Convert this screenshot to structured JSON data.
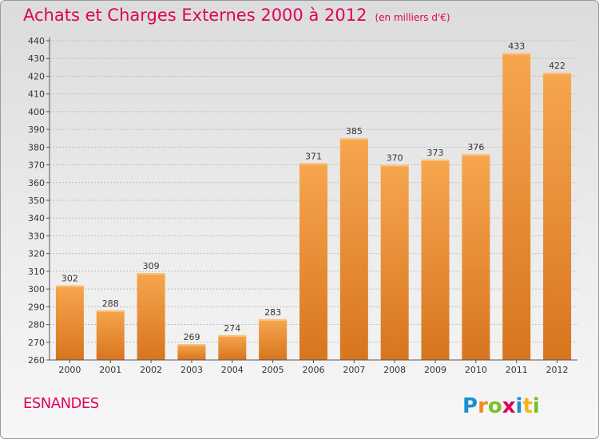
{
  "header": {
    "title": "Achats et Charges Externes 2000 à 2012",
    "unit": "(en milliers d'€)"
  },
  "footer": {
    "place": "ESNANDES",
    "logo_text": "Proxiti"
  },
  "colors": {
    "title": "#e0005a",
    "bar_top": "#f6a64e",
    "bar_bottom": "#d8751f",
    "grid": "#bdbdbd"
  },
  "chart_data": {
    "type": "bar",
    "categories": [
      "2000",
      "2001",
      "2002",
      "2003",
      "2004",
      "2005",
      "2006",
      "2007",
      "2008",
      "2009",
      "2010",
      "2011",
      "2012"
    ],
    "values": [
      302,
      288,
      309,
      269,
      274,
      283,
      371,
      385,
      370,
      373,
      376,
      433,
      422
    ],
    "ylim": [
      260,
      440
    ],
    "yticks": [
      260,
      270,
      280,
      290,
      300,
      310,
      320,
      330,
      340,
      350,
      360,
      370,
      380,
      390,
      400,
      410,
      420,
      430,
      440
    ],
    "grid": true,
    "title": "Achats et Charges Externes 2000 à 2012",
    "xlabel": "",
    "ylabel": ""
  }
}
